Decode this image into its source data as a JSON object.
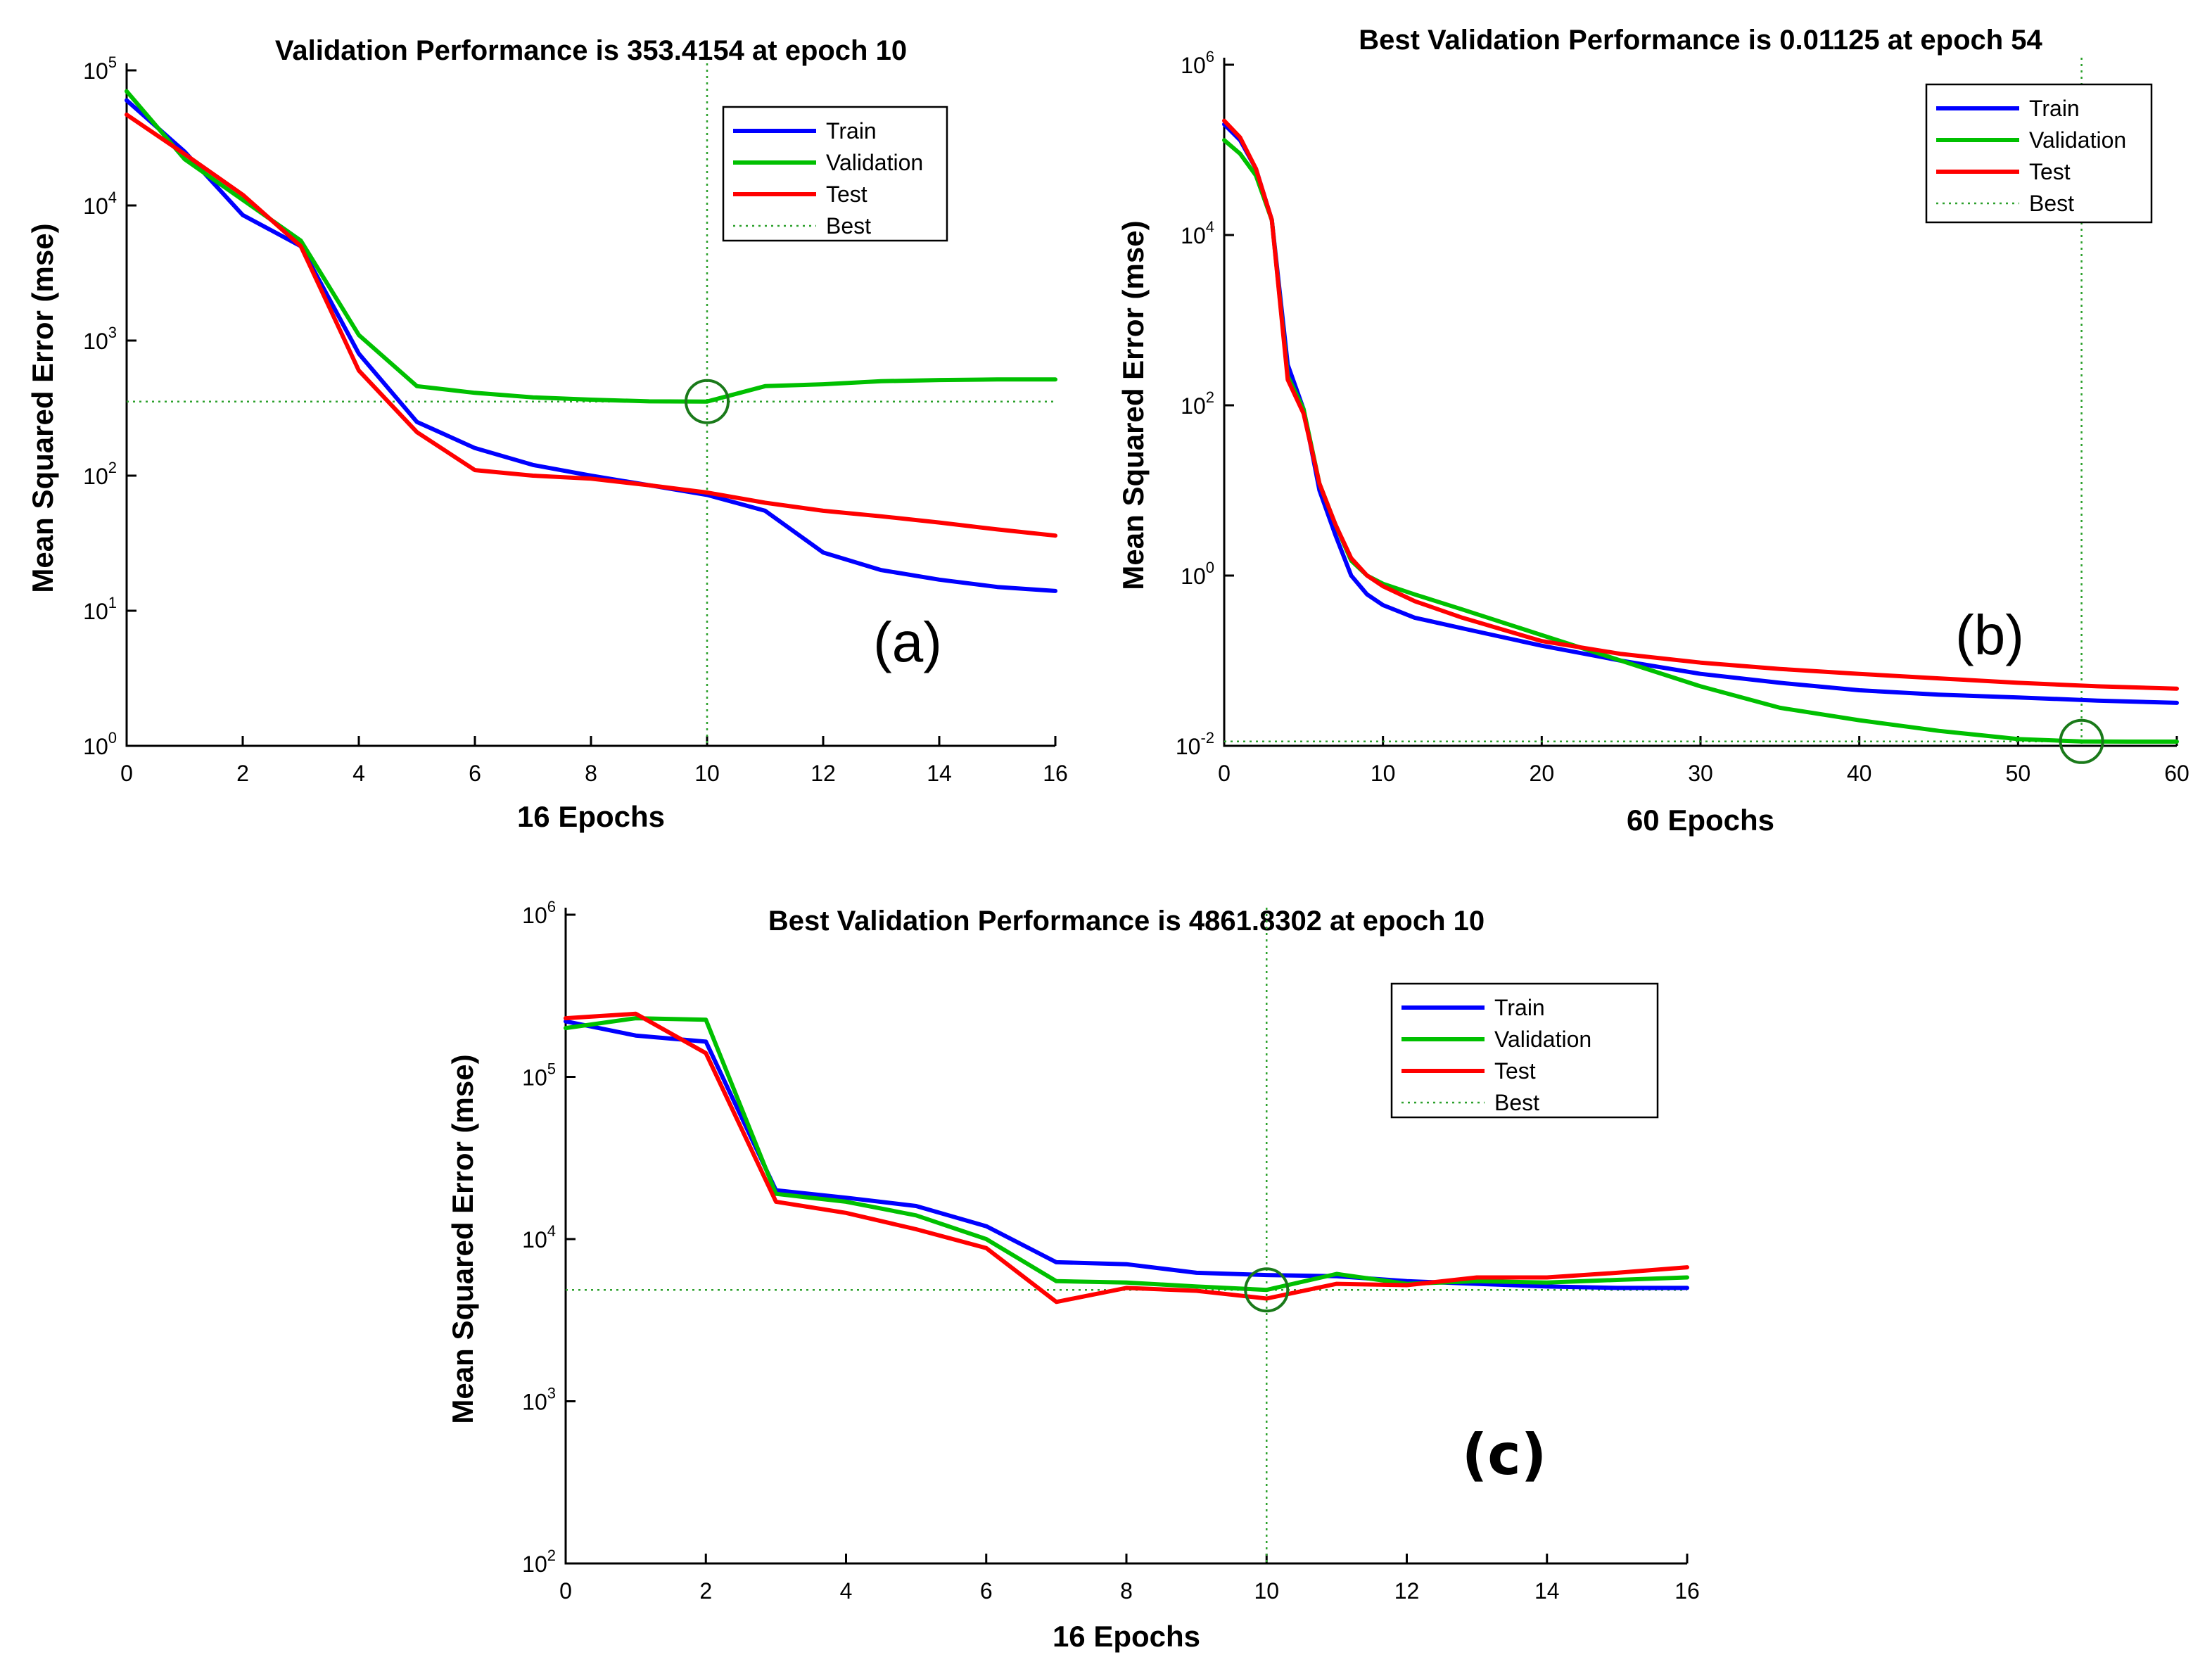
{
  "chart_data": [
    {
      "id": "a",
      "type": "line",
      "panel_label": "(a)",
      "panel_label_bold": false,
      "title": "Validation Performance is 353.4154 at epoch 10",
      "xlabel": "16 Epochs",
      "ylabel": "Mean Squared Error  (mse)",
      "xlim": [
        0,
        16
      ],
      "xticks": [
        0,
        2,
        4,
        6,
        8,
        10,
        12,
        14,
        16
      ],
      "ylim_log10": [
        0,
        5
      ],
      "yscale": "log",
      "yticks_exp": [
        0,
        1,
        2,
        3,
        4,
        5
      ],
      "best": {
        "epoch": 10,
        "value": 353.4154
      },
      "legend": {
        "placement": "top-right",
        "entries": [
          "Train",
          "Validation",
          "Test",
          "Best"
        ]
      },
      "series": [
        {
          "name": "Train",
          "color": "#0000ff",
          "x": [
            0,
            1,
            2,
            3,
            4,
            5,
            6,
            7,
            8,
            9,
            10,
            11,
            12,
            13,
            14,
            15,
            16
          ],
          "y": [
            60000,
            25000,
            8500,
            5000,
            800,
            250,
            160,
            120,
            100,
            85,
            72,
            55,
            27,
            20,
            17,
            15,
            14
          ]
        },
        {
          "name": "Validation",
          "color": "#00c000",
          "x": [
            0,
            1,
            2,
            3,
            4,
            5,
            6,
            7,
            8,
            9,
            10,
            11,
            12,
            13,
            14,
            15,
            16
          ],
          "y": [
            70000,
            22000,
            11000,
            5500,
            1100,
            460,
            410,
            380,
            365,
            355,
            353.4154,
            460,
            475,
            500,
            510,
            515,
            515
          ]
        },
        {
          "name": "Test",
          "color": "#ff0000",
          "x": [
            0,
            1,
            2,
            3,
            4,
            5,
            6,
            7,
            8,
            9,
            10,
            11,
            12,
            13,
            14,
            15,
            16
          ],
          "y": [
            47000,
            24000,
            12000,
            5000,
            600,
            210,
            110,
            100,
            95,
            85,
            75,
            63,
            55,
            50,
            45,
            40,
            36
          ]
        }
      ]
    },
    {
      "id": "b",
      "type": "line",
      "panel_label": "(b)",
      "panel_label_bold": false,
      "title": "Best Validation Performance is 0.01125 at epoch 54",
      "xlabel": "60 Epochs",
      "ylabel": "Mean Squared Error  (mse)",
      "xlim": [
        0,
        60
      ],
      "xticks": [
        0,
        10,
        20,
        30,
        40,
        50,
        60
      ],
      "ylim_log10": [
        -2,
        6
      ],
      "yscale": "log",
      "yticks_exp": [
        -2,
        0,
        2,
        4,
        6
      ],
      "best": {
        "epoch": 54,
        "value": 0.01125
      },
      "legend": {
        "placement": "top-right",
        "entries": [
          "Train",
          "Validation",
          "Test",
          "Best"
        ]
      },
      "series": [
        {
          "name": "Train",
          "color": "#0000ff",
          "x": [
            0,
            1,
            2,
            3,
            4,
            5,
            6,
            7,
            8,
            9,
            10,
            12,
            15,
            20,
            25,
            30,
            35,
            40,
            45,
            50,
            55,
            60
          ],
          "y": [
            200000,
            130000,
            60000,
            15000,
            300,
            90,
            10,
            3,
            1,
            0.6,
            0.45,
            0.32,
            0.24,
            0.15,
            0.1,
            0.07,
            0.055,
            0.045,
            0.04,
            0.037,
            0.034,
            0.032
          ]
        },
        {
          "name": "Validation",
          "color": "#00c000",
          "x": [
            0,
            1,
            2,
            3,
            4,
            5,
            6,
            7,
            8,
            9,
            10,
            12,
            15,
            20,
            25,
            30,
            35,
            40,
            45,
            50,
            54,
            57,
            60
          ],
          "y": [
            130000,
            90000,
            50000,
            15000,
            220,
            90,
            12,
            4,
            1.5,
            1.0,
            0.8,
            0.6,
            0.4,
            0.2,
            0.1,
            0.05,
            0.028,
            0.02,
            0.015,
            0.012,
            0.01125,
            0.0112,
            0.0112
          ]
        },
        {
          "name": "Test",
          "color": "#ff0000",
          "x": [
            0,
            1,
            2,
            3,
            4,
            5,
            6,
            7,
            8,
            9,
            10,
            12,
            15,
            20,
            25,
            30,
            35,
            40,
            45,
            50,
            55,
            60
          ],
          "y": [
            220000,
            140000,
            60000,
            15000,
            200,
            80,
            12,
            4,
            1.6,
            1.0,
            0.75,
            0.5,
            0.32,
            0.17,
            0.12,
            0.095,
            0.08,
            0.07,
            0.062,
            0.055,
            0.05,
            0.047
          ]
        }
      ]
    },
    {
      "id": "c",
      "type": "line",
      "panel_label": "(c)",
      "panel_label_bold": true,
      "title": "Best Validation Performance is 4861.8302 at epoch 10",
      "xlabel": "16 Epochs",
      "ylabel": "Mean Squared Error  (mse)",
      "xlim": [
        0,
        16
      ],
      "xticks": [
        0,
        2,
        4,
        6,
        8,
        10,
        12,
        14,
        16
      ],
      "ylim_log10": [
        2,
        6
      ],
      "yscale": "log",
      "yticks_exp": [
        2,
        3,
        4,
        5,
        6
      ],
      "best": {
        "epoch": 10,
        "value": 4861.8302
      },
      "legend": {
        "placement": "top-right",
        "entries": [
          "Train",
          "Validation",
          "Test",
          "Best"
        ]
      },
      "series": [
        {
          "name": "Train",
          "color": "#0000ff",
          "x": [
            0,
            1,
            2,
            3,
            4,
            5,
            6,
            7,
            8,
            9,
            10,
            11,
            12,
            13,
            14,
            15,
            16
          ],
          "y": [
            220000,
            180000,
            165000,
            20000,
            18000,
            16000,
            12000,
            7200,
            7000,
            6200,
            6000,
            5900,
            5500,
            5300,
            5100,
            5000,
            5000
          ]
        },
        {
          "name": "Validation",
          "color": "#00c000",
          "x": [
            0,
            1,
            2,
            3,
            4,
            5,
            6,
            7,
            8,
            9,
            10,
            11,
            12,
            13,
            14,
            15,
            16
          ],
          "y": [
            200000,
            230000,
            225000,
            19000,
            17000,
            14000,
            10000,
            5500,
            5400,
            5100,
            4861.8302,
            6100,
            5300,
            5500,
            5400,
            5600,
            5800
          ]
        },
        {
          "name": "Test",
          "color": "#ff0000",
          "x": [
            0,
            1,
            2,
            3,
            4,
            5,
            6,
            7,
            8,
            9,
            10,
            11,
            12,
            13,
            14,
            15,
            16
          ],
          "y": [
            230000,
            245000,
            140000,
            17000,
            14500,
            11500,
            8800,
            4100,
            5000,
            4800,
            4300,
            5300,
            5200,
            5800,
            5800,
            6200,
            6700
          ]
        }
      ]
    }
  ]
}
